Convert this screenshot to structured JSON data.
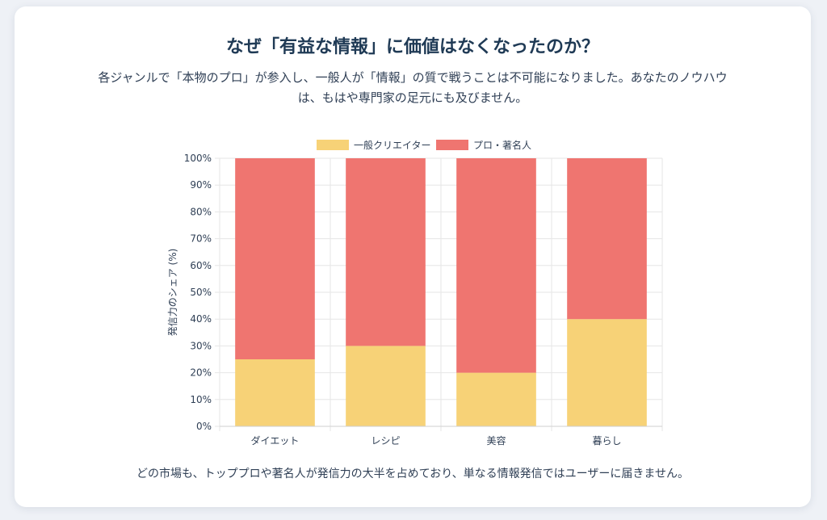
{
  "title": "なぜ「有益な情報」に価値はなくなったのか？",
  "subtitle": "各ジャンルで「本物のプロ」が参入し、一般人が「情報」の質で戦うことは不可能になりました。あなたのノウハウは、もはや専門家の足元にも及びません。",
  "footer": "どの市場も、トッププロや著名人が発信力の大半を占めており、単なる情報発信ではユーザーに届きません。",
  "colors": {
    "general": "#f7d277",
    "pro": "#ef7570",
    "grid": "#e6e6e6",
    "text": "#2f3f55"
  },
  "chart_data": {
    "type": "bar",
    "stacked": true,
    "categories": [
      "ダイエット",
      "レシピ",
      "美容",
      "暮らし"
    ],
    "series": [
      {
        "name": "一般クリエイター",
        "values": [
          25,
          30,
          20,
          40
        ]
      },
      {
        "name": "プロ・著名人",
        "values": [
          75,
          70,
          80,
          60
        ]
      }
    ],
    "ylabel": "発信力のシェア (%)",
    "xlabel": "",
    "ylim": [
      0,
      100
    ],
    "yticks": [
      "0%",
      "10%",
      "20%",
      "30%",
      "40%",
      "50%",
      "60%",
      "70%",
      "80%",
      "90%",
      "100%"
    ],
    "grid": true,
    "legend": "top"
  }
}
